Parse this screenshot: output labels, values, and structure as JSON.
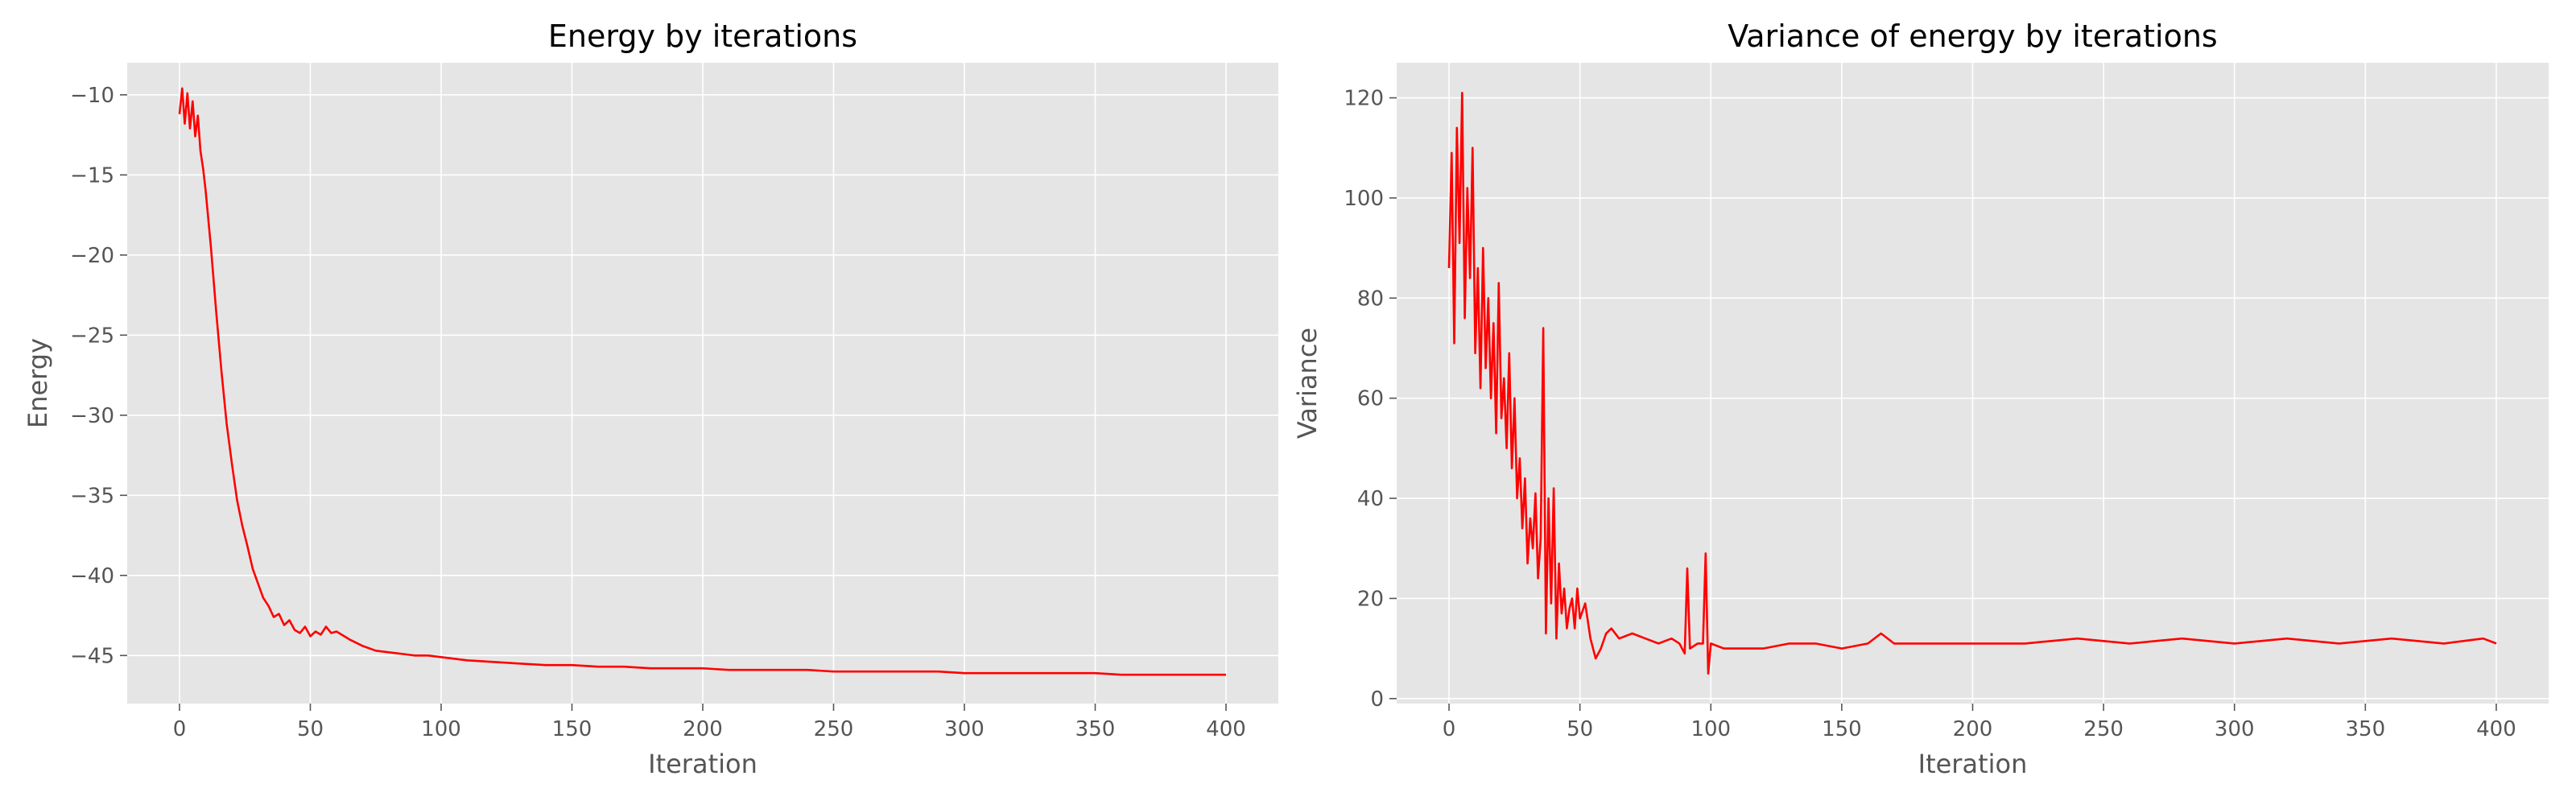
{
  "style": {
    "background": "#e5e5e5",
    "grid_color": "#ffffff",
    "line_color": "#ff0000"
  },
  "chart_data": [
    {
      "type": "line",
      "title": "Energy by iterations",
      "xlabel": "Iteration",
      "ylabel": "Energy",
      "xlim": [
        -20,
        420
      ],
      "ylim": [
        -48,
        -8
      ],
      "xticks": [
        0,
        50,
        100,
        150,
        200,
        250,
        300,
        350,
        400
      ],
      "yticks": [
        -45,
        -40,
        -35,
        -30,
        -25,
        -20,
        -15,
        -10
      ],
      "grid": true,
      "series": [
        {
          "color": "#ff0000",
          "x": [
            0,
            1,
            2,
            3,
            4,
            5,
            6,
            7,
            8,
            9,
            10,
            12,
            14,
            16,
            18,
            20,
            22,
            24,
            26,
            28,
            30,
            32,
            34,
            36,
            38,
            40,
            42,
            44,
            46,
            48,
            50,
            52,
            54,
            56,
            58,
            60,
            65,
            70,
            75,
            80,
            85,
            90,
            95,
            100,
            110,
            120,
            130,
            140,
            150,
            160,
            170,
            180,
            190,
            200,
            210,
            220,
            230,
            240,
            250,
            260,
            270,
            280,
            290,
            300,
            310,
            320,
            330,
            340,
            350,
            360,
            370,
            380,
            390,
            400
          ],
          "y": [
            -11.2,
            -9.6,
            -11.8,
            -9.9,
            -12.1,
            -10.4,
            -12.6,
            -11.3,
            -13.5,
            -14.6,
            -16.0,
            -19.5,
            -23.5,
            -27.2,
            -30.5,
            -33.0,
            -35.3,
            -36.9,
            -38.2,
            -39.6,
            -40.5,
            -41.4,
            -41.9,
            -42.6,
            -42.4,
            -43.1,
            -42.8,
            -43.4,
            -43.6,
            -43.2,
            -43.8,
            -43.5,
            -43.7,
            -43.2,
            -43.6,
            -43.5,
            -44.0,
            -44.4,
            -44.7,
            -44.8,
            -44.9,
            -45.0,
            -45.0,
            -45.1,
            -45.3,
            -45.4,
            -45.5,
            -45.6,
            -45.6,
            -45.7,
            -45.7,
            -45.8,
            -45.8,
            -45.8,
            -45.9,
            -45.9,
            -45.9,
            -45.9,
            -46.0,
            -46.0,
            -46.0,
            -46.0,
            -46.0,
            -46.1,
            -46.1,
            -46.1,
            -46.1,
            -46.1,
            -46.1,
            -46.2,
            -46.2,
            -46.2,
            -46.2,
            -46.2
          ]
        }
      ]
    },
    {
      "type": "line",
      "title": "Variance of energy by iterations",
      "xlabel": "Iteration",
      "ylabel": "Variance",
      "xlim": [
        -20,
        420
      ],
      "ylim": [
        -1,
        127
      ],
      "xticks": [
        0,
        50,
        100,
        150,
        200,
        250,
        300,
        350,
        400
      ],
      "yticks": [
        0,
        20,
        40,
        60,
        80,
        100,
        120
      ],
      "grid": true,
      "series": [
        {
          "color": "#ff0000",
          "x": [
            0,
            1,
            2,
            3,
            4,
            5,
            6,
            7,
            8,
            9,
            10,
            11,
            12,
            13,
            14,
            15,
            16,
            17,
            18,
            19,
            20,
            21,
            22,
            23,
            24,
            25,
            26,
            27,
            28,
            29,
            30,
            31,
            32,
            33,
            34,
            35,
            36,
            37,
            38,
            39,
            40,
            41,
            42,
            43,
            44,
            45,
            46,
            47,
            48,
            49,
            50,
            52,
            54,
            56,
            58,
            60,
            62,
            65,
            70,
            75,
            80,
            85,
            88,
            90,
            91,
            92,
            95,
            97,
            98,
            99,
            100,
            105,
            110,
            120,
            130,
            140,
            150,
            160,
            165,
            170,
            180,
            190,
            200,
            220,
            240,
            260,
            280,
            300,
            320,
            340,
            360,
            380,
            395,
            400
          ],
          "y": [
            86,
            109,
            71,
            114,
            91,
            121,
            76,
            102,
            84,
            110,
            69,
            86,
            62,
            90,
            66,
            80,
            60,
            75,
            53,
            83,
            56,
            64,
            50,
            69,
            46,
            60,
            40,
            48,
            34,
            44,
            27,
            36,
            30,
            41,
            24,
            32,
            74,
            13,
            40,
            19,
            42,
            12,
            27,
            17,
            22,
            14,
            18,
            20,
            14,
            22,
            16,
            19,
            12,
            8,
            10,
            13,
            14,
            12,
            13,
            12,
            11,
            12,
            11,
            9,
            26,
            10,
            11,
            11,
            29,
            5,
            11,
            10,
            10,
            10,
            11,
            11,
            10,
            11,
            13,
            11,
            11,
            11,
            11,
            11,
            12,
            11,
            12,
            11,
            12,
            11,
            12,
            11,
            12,
            11
          ]
        }
      ]
    }
  ]
}
